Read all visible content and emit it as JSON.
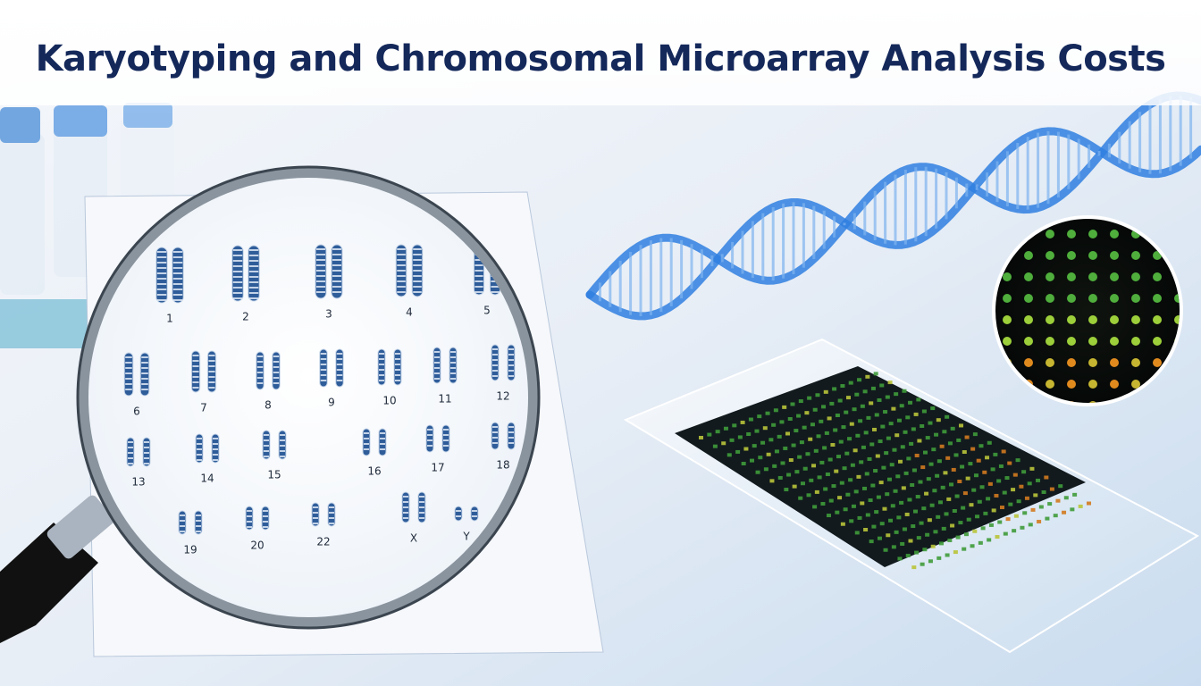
{
  "header": {
    "title": "Karyotyping and Chromosomal Microarray Analysis Costs"
  },
  "karyotype": {
    "labels": [
      "1",
      "2",
      "3",
      "4",
      "5",
      "6",
      "7",
      "8",
      "9",
      "10",
      "11",
      "12",
      "13",
      "14",
      "15",
      "16",
      "17",
      "18",
      "19",
      "20",
      "22",
      "X",
      "Y"
    ]
  }
}
